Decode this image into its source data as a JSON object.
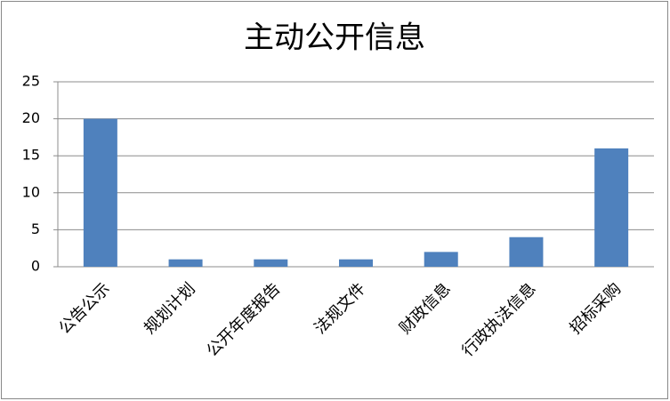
{
  "chart_data": {
    "type": "bar",
    "title": "主动公开信息",
    "categories": [
      "公告公示",
      "规划计划",
      "公开年度报告",
      "法规文件",
      "财政信息",
      "行政执法信息",
      "招标采购"
    ],
    "values": [
      20,
      1,
      1,
      1,
      2,
      4,
      16
    ],
    "color": "#4f81bd",
    "ylim": [
      0,
      25
    ],
    "yticks": [
      0,
      5,
      10,
      15,
      20,
      25
    ],
    "grid": true
  }
}
